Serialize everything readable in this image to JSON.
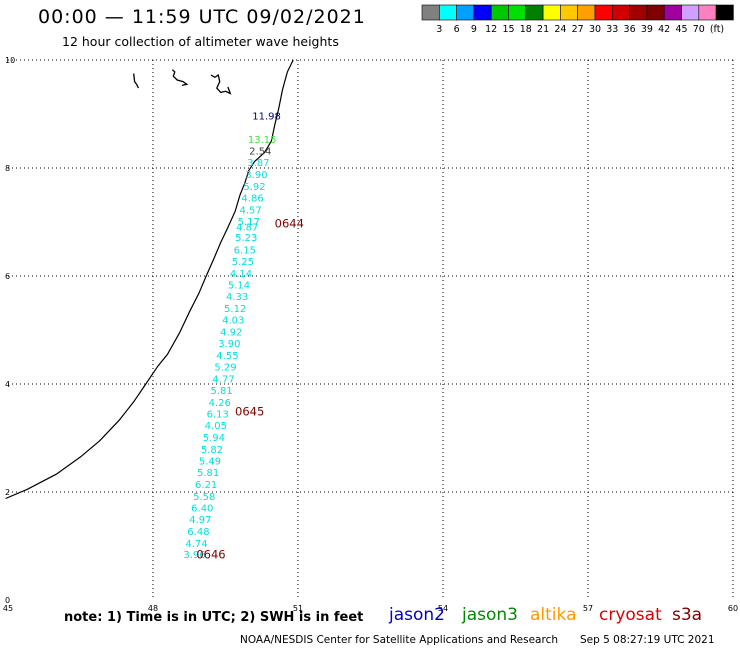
{
  "header": {
    "title": "00:00 — 11:59 UTC 09/02/2021",
    "subtitle": "12 hour collection of altimeter wave heights"
  },
  "colorbar": {
    "unit": "(ft)",
    "bins": [
      {
        "label": "",
        "color": "#808080"
      },
      {
        "label": "3",
        "color": "#00ffff"
      },
      {
        "label": "6",
        "color": "#00a0ff"
      },
      {
        "label": "9",
        "color": "#0000ff"
      },
      {
        "label": "12",
        "color": "#00c800"
      },
      {
        "label": "15",
        "color": "#00e000"
      },
      {
        "label": "18",
        "color": "#008000"
      },
      {
        "label": "21",
        "color": "#ffff00"
      },
      {
        "label": "24",
        "color": "#ffc800"
      },
      {
        "label": "27",
        "color": "#ffa000"
      },
      {
        "label": "30",
        "color": "#ff0000"
      },
      {
        "label": "33",
        "color": "#d00000"
      },
      {
        "label": "36",
        "color": "#a00000"
      },
      {
        "label": "39",
        "color": "#800000"
      },
      {
        "label": "42",
        "color": "#a000a0"
      },
      {
        "label": "45",
        "color": "#d0a0ff"
      },
      {
        "label": "70",
        "color": "#ff80c0"
      },
      {
        "label": "",
        "color": "#000000"
      }
    ]
  },
  "chart_data": {
    "type": "scatter",
    "xlim": [
      45,
      60
    ],
    "ylim": [
      0,
      10
    ],
    "x_ticks": [
      "45",
      "48",
      "51",
      "54",
      "57",
      "60"
    ],
    "y_ticks": [
      "0",
      "2",
      "4",
      "6",
      "8",
      "10"
    ],
    "grid": true,
    "colors": {
      "cyan": "#00e0e0",
      "green": "#40e040",
      "navy": "#000080",
      "gray": "#404040",
      "time": "#800000"
    },
    "points": [
      {
        "x": 50.35,
        "y": 8.97,
        "label": "11.98",
        "color": "navy"
      },
      {
        "x": 50.26,
        "y": 8.54,
        "label": "13.15",
        "color": "green"
      },
      {
        "x": 50.22,
        "y": 8.32,
        "label": "2.54",
        "color": "gray"
      },
      {
        "x": 50.18,
        "y": 8.11,
        "label": "3.87",
        "color": "cyan"
      },
      {
        "x": 50.14,
        "y": 7.89,
        "label": "3.90",
        "color": "cyan"
      },
      {
        "x": 50.1,
        "y": 7.67,
        "label": "5.92",
        "color": "cyan"
      },
      {
        "x": 50.06,
        "y": 7.45,
        "label": "4.86",
        "color": "cyan"
      },
      {
        "x": 50.02,
        "y": 7.23,
        "label": "4.57",
        "color": "cyan"
      },
      {
        "x": 49.98,
        "y": 7.02,
        "label": "5.17",
        "color": "cyan"
      },
      {
        "x": 49.95,
        "y": 6.92,
        "label": "4.87",
        "color": "cyan"
      },
      {
        "x": 49.93,
        "y": 6.72,
        "label": "5.23",
        "color": "cyan"
      },
      {
        "x": 49.9,
        "y": 6.49,
        "label": "6.15",
        "color": "cyan"
      },
      {
        "x": 49.86,
        "y": 6.28,
        "label": "5.25",
        "color": "cyan"
      },
      {
        "x": 49.82,
        "y": 6.06,
        "label": "4.14",
        "color": "cyan"
      },
      {
        "x": 49.78,
        "y": 5.84,
        "label": "5.14",
        "color": "cyan"
      },
      {
        "x": 49.74,
        "y": 5.63,
        "label": "4.33",
        "color": "cyan"
      },
      {
        "x": 49.7,
        "y": 5.41,
        "label": "5.12",
        "color": "cyan"
      },
      {
        "x": 49.66,
        "y": 5.19,
        "label": "4.03",
        "color": "cyan"
      },
      {
        "x": 49.62,
        "y": 4.97,
        "label": "4.92",
        "color": "cyan"
      },
      {
        "x": 49.58,
        "y": 4.76,
        "label": "3.90",
        "color": "cyan"
      },
      {
        "x": 49.54,
        "y": 4.54,
        "label": "4.55",
        "color": "cyan"
      },
      {
        "x": 49.5,
        "y": 4.32,
        "label": "5.29",
        "color": "cyan"
      },
      {
        "x": 49.46,
        "y": 4.1,
        "label": "4.77",
        "color": "cyan"
      },
      {
        "x": 49.42,
        "y": 3.89,
        "label": "5.81",
        "color": "cyan"
      },
      {
        "x": 49.38,
        "y": 3.67,
        "label": "4.26",
        "color": "cyan"
      },
      {
        "x": 49.34,
        "y": 3.45,
        "label": "6.13",
        "color": "cyan"
      },
      {
        "x": 49.3,
        "y": 3.24,
        "label": "4.05",
        "color": "cyan"
      },
      {
        "x": 49.26,
        "y": 3.02,
        "label": "5.94",
        "color": "cyan"
      },
      {
        "x": 49.22,
        "y": 2.8,
        "label": "5.82",
        "color": "cyan"
      },
      {
        "x": 49.18,
        "y": 2.58,
        "label": "5.49",
        "color": "cyan"
      },
      {
        "x": 49.14,
        "y": 2.37,
        "label": "5.81",
        "color": "cyan"
      },
      {
        "x": 49.1,
        "y": 2.15,
        "label": "6.21",
        "color": "cyan"
      },
      {
        "x": 49.06,
        "y": 1.93,
        "label": "5.58",
        "color": "cyan"
      },
      {
        "x": 49.02,
        "y": 1.71,
        "label": "6.40",
        "color": "cyan"
      },
      {
        "x": 48.98,
        "y": 1.5,
        "label": "4.97",
        "color": "cyan"
      },
      {
        "x": 48.94,
        "y": 1.28,
        "label": "6.48",
        "color": "cyan"
      },
      {
        "x": 48.9,
        "y": 1.06,
        "label": "4.74",
        "color": "cyan"
      },
      {
        "x": 48.86,
        "y": 0.85,
        "label": "3.96",
        "color": "cyan"
      }
    ],
    "time_labels": [
      {
        "x": 50.82,
        "y": 6.97,
        "label": "0644"
      },
      {
        "x": 50.0,
        "y": 3.49,
        "label": "0645"
      },
      {
        "x": 49.2,
        "y": 0.84,
        "label": "0646"
      }
    ],
    "coastline": [
      [
        44.95,
        1.88
      ],
      [
        45.4,
        2.05
      ],
      [
        46.0,
        2.33
      ],
      [
        46.5,
        2.65
      ],
      [
        46.9,
        2.95
      ],
      [
        47.3,
        3.33
      ],
      [
        47.6,
        3.67
      ],
      [
        47.85,
        4.0
      ],
      [
        48.1,
        4.33
      ],
      [
        48.3,
        4.55
      ],
      [
        48.55,
        4.95
      ],
      [
        48.75,
        5.33
      ],
      [
        48.95,
        5.68
      ],
      [
        49.1,
        6.0
      ],
      [
        49.25,
        6.3
      ],
      [
        49.4,
        6.62
      ],
      [
        49.55,
        6.9
      ],
      [
        49.7,
        7.2
      ],
      [
        49.8,
        7.5
      ],
      [
        49.9,
        7.72
      ],
      [
        49.98,
        7.95
      ],
      [
        50.1,
        8.12
      ],
      [
        50.3,
        8.28
      ],
      [
        50.45,
        8.5
      ],
      [
        50.52,
        8.8
      ],
      [
        50.6,
        9.1
      ],
      [
        50.68,
        9.45
      ],
      [
        50.78,
        9.78
      ],
      [
        50.9,
        10.0
      ]
    ],
    "islands": [
      [
        [
          47.6,
          9.75
        ],
        [
          47.62,
          9.6
        ],
        [
          47.66,
          9.55
        ],
        [
          47.7,
          9.48
        ]
      ],
      [
        [
          48.4,
          9.82
        ],
        [
          48.45,
          9.78
        ],
        [
          48.42,
          9.7
        ],
        [
          48.5,
          9.63
        ],
        [
          48.62,
          9.6
        ],
        [
          48.7,
          9.55
        ],
        [
          48.6,
          9.53
        ]
      ],
      [
        [
          49.2,
          9.72
        ],
        [
          49.28,
          9.68
        ],
        [
          49.35,
          9.72
        ],
        [
          49.38,
          9.6
        ],
        [
          49.32,
          9.48
        ],
        [
          49.4,
          9.4
        ],
        [
          49.5,
          9.42
        ],
        [
          49.6,
          9.38
        ],
        [
          49.55,
          9.5
        ]
      ]
    ]
  },
  "footer": {
    "note": "note: 1) Time is in UTC; 2) SWH is in feet",
    "satellites": [
      {
        "name": "jason2",
        "color": "#0000cc"
      },
      {
        "name": "jason3",
        "color": "#008800"
      },
      {
        "name": "altika",
        "color": "#ff9900"
      },
      {
        "name": "cryosat",
        "color": "#dd0000"
      },
      {
        "name": "s3a",
        "color": "#800000"
      }
    ],
    "credit": "NOAA/NESDIS Center for Satellite Applications and Research",
    "timestamp": "Sep  5 08:27:19 UTC 2021"
  }
}
